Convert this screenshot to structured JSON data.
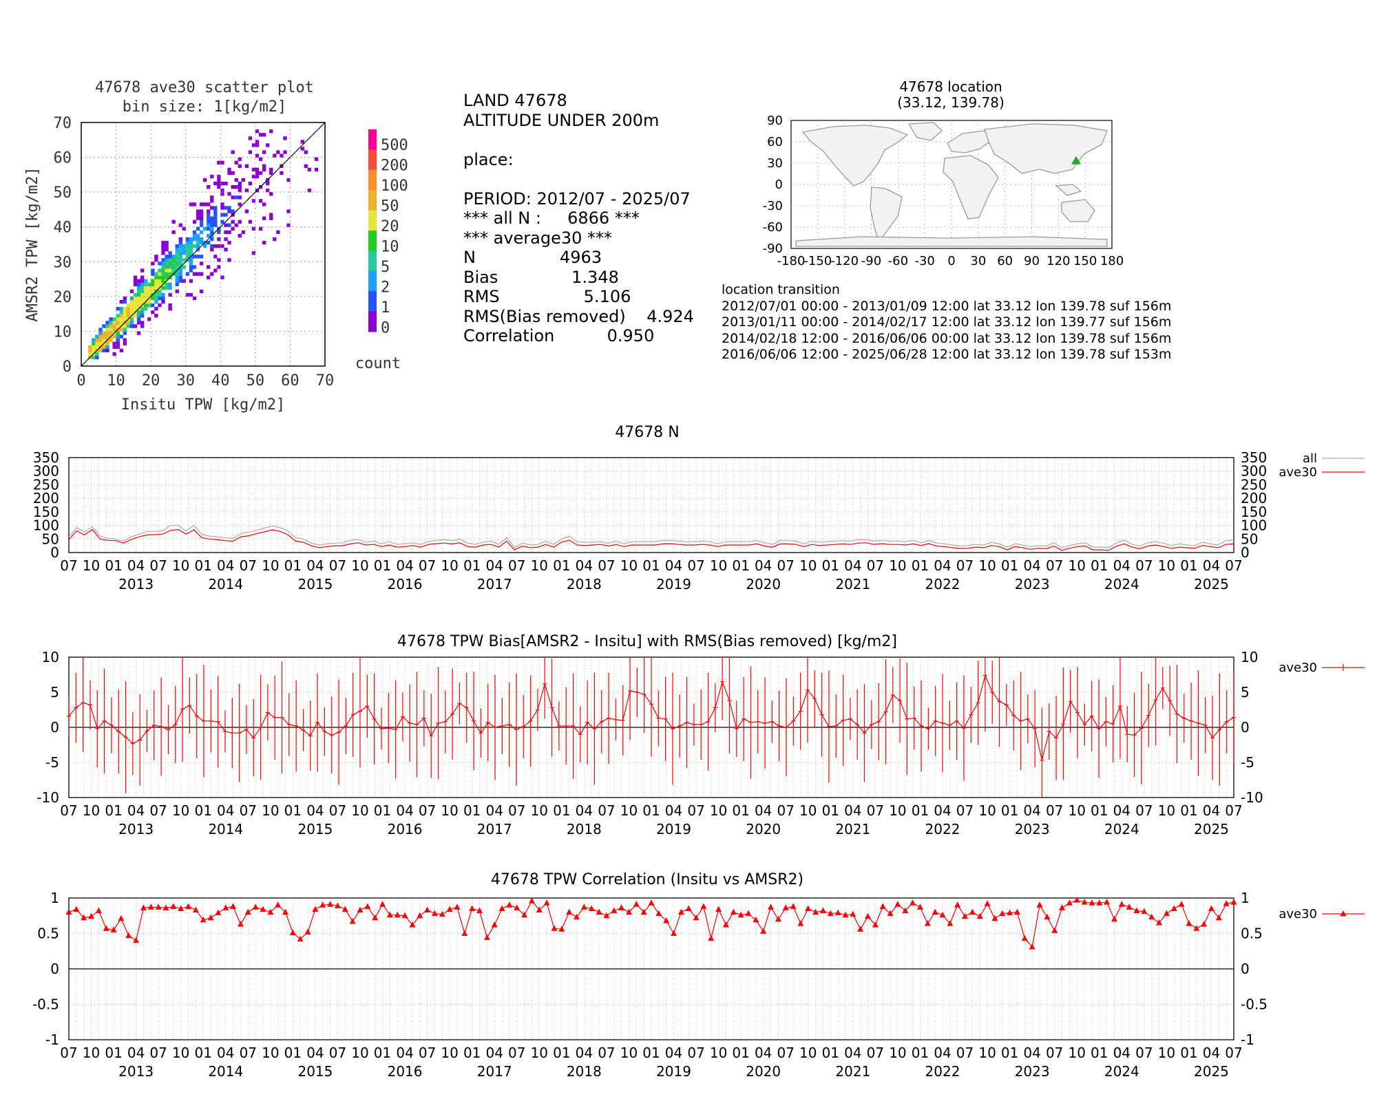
{
  "scatter": {
    "title_line1": "47678 ave30 scatter plot",
    "title_line2": "bin size: 1[kg/m2]",
    "xlabel": "Insitu TPW [kg/m2]",
    "ylabel": "AMSR2 TPW [kg/m2]",
    "ticks": [
      "0",
      "10",
      "20",
      "30",
      "40",
      "50",
      "60",
      "70"
    ],
    "colorbar_labels": [
      "500",
      "200",
      "100",
      "50",
      "20",
      "10",
      "5",
      "2",
      "1",
      "0"
    ],
    "colorbar_colors": [
      "#ff0090",
      "#ff4a3a",
      "#ff8c2a",
      "#f0b030",
      "#e6e63a",
      "#22cc22",
      "#22cc99",
      "#1f9fff",
      "#2255ff",
      "#8a00d4"
    ],
    "colorbar_title": "count"
  },
  "stats": {
    "line1": "LAND 47678",
    "line2": "ALTITUDE UNDER 200m",
    "line3": "",
    "line4": "place:",
    "line5": "",
    "line6": "PERIOD: 2012/07 - 2025/07",
    "line7": "*** all N :     6866 ***",
    "line8": "*** average30 ***",
    "line9": "N                4963",
    "line10": "Bias              1.348",
    "line11": "RMS                5.106",
    "line12": "RMS(Bias removed)    4.924",
    "line13": "Correlation          0.950"
  },
  "map": {
    "title_line1": "47678 location",
    "title_line2": "(33.12, 139.78)",
    "lat": 33.12,
    "lon": 139.78,
    "xticks": [
      "-180",
      "-150",
      "-120",
      "-90",
      "-60",
      "-30",
      "0",
      "30",
      "60",
      "90",
      "120",
      "150",
      "180"
    ],
    "yticks": [
      "90",
      "60",
      "30",
      "0",
      "-30",
      "-60",
      "-90"
    ],
    "marker_color": "#22aa22"
  },
  "transitions": {
    "title": "location transition",
    "rows": [
      "2012/07/01 00:00 - 2013/01/09 12:00 lat 33.12 lon 139.78 suf 156m",
      "2013/01/11 00:00 - 2014/02/17 12:00 lat 33.12 lon 139.77 suf 156m",
      "2014/02/18 12:00 - 2016/06/06 00:00 lat 33.12 lon 139.78 suf 156m",
      "2016/06/06 12:00 - 2025/06/28 12:00 lat 33.12 lon 139.78 suf 153m"
    ]
  },
  "timeaxis": {
    "month_labels": [
      "07",
      "10",
      "01",
      "04",
      "07",
      "10",
      "01",
      "04",
      "07",
      "10",
      "01",
      "04",
      "07",
      "10",
      "01",
      "04",
      "07",
      "10",
      "01",
      "04",
      "07",
      "10",
      "01",
      "04",
      "07",
      "10",
      "01",
      "04",
      "07",
      "10",
      "01",
      "04",
      "07",
      "10",
      "01",
      "04",
      "07",
      "10",
      "01",
      "04",
      "07",
      "10",
      "01",
      "04",
      "07",
      "10",
      "01",
      "04",
      "07",
      "10",
      "01",
      "04",
      "07"
    ],
    "years": [
      "2013",
      "2014",
      "2015",
      "2016",
      "2017",
      "2018",
      "2019",
      "2020",
      "2021",
      "2022",
      "2023",
      "2024",
      "2025"
    ]
  },
  "chart_data": [
    {
      "type": "scatter",
      "title": "47678 ave30 scatter plot",
      "subtitle": "bin size: 1[kg/m2]",
      "xlabel": "Insitu TPW [kg/m2]",
      "ylabel": "AMSR2 TPW [kg/m2]",
      "xlim": [
        0,
        70
      ],
      "ylim": [
        0,
        70
      ],
      "color_scale": "count",
      "note": "2-D histogram of (Insitu, AMSR2) pairs, dense along the 1:1 line"
    },
    {
      "type": "line",
      "title": "47678 N",
      "ylim": [
        0,
        350
      ],
      "yticks": [
        "350",
        "300",
        "250",
        "200",
        "150",
        "100",
        "50",
        "0"
      ],
      "series": [
        {
          "name": "all",
          "color": "#aaaaaa",
          "values": [
            58,
            92,
            75,
            95,
            60,
            52,
            50,
            42,
            58,
            68,
            78,
            78,
            80,
            100,
            100,
            80,
            100,
            68,
            60,
            58,
            55,
            52,
            70,
            75,
            82,
            90,
            98,
            92,
            80,
            55,
            50,
            35,
            28,
            32,
            35,
            35,
            45,
            48,
            38,
            42,
            32,
            40,
            30,
            32,
            36,
            30,
            40,
            45,
            48,
            44,
            50,
            35,
            30,
            38,
            42,
            30,
            55,
            18,
            35,
            28,
            30,
            42,
            30,
            50,
            60,
            40,
            38,
            38,
            40,
            34,
            42,
            32,
            40,
            40,
            40,
            40,
            45,
            45,
            42,
            40,
            40,
            42,
            40,
            32,
            40,
            40,
            40,
            40,
            44,
            36,
            30,
            45,
            44,
            42,
            32,
            42,
            38,
            40,
            42,
            44,
            42,
            48,
            48,
            42,
            45,
            42,
            42,
            40,
            45,
            36,
            45,
            35,
            32,
            28,
            24,
            26,
            30,
            28,
            38,
            32,
            20,
            32,
            28,
            22,
            26,
            24,
            36,
            18,
            26,
            32,
            36,
            20,
            20,
            18,
            36,
            46,
            30,
            24,
            36,
            40,
            34,
            26,
            32,
            28,
            26,
            38,
            32,
            28,
            44,
            46
          ]
        },
        {
          "name": "ave30",
          "color": "#ff0000",
          "values": [
            48,
            80,
            65,
            85,
            50,
            45,
            44,
            35,
            48,
            58,
            65,
            66,
            68,
            82,
            85,
            68,
            84,
            55,
            50,
            48,
            44,
            42,
            58,
            62,
            70,
            76,
            84,
            78,
            66,
            42,
            38,
            25,
            18,
            22,
            25,
            25,
            32,
            36,
            28,
            30,
            22,
            28,
            20,
            22,
            26,
            20,
            30,
            33,
            35,
            32,
            36,
            22,
            20,
            28,
            30,
            20,
            42,
            10,
            24,
            18,
            20,
            30,
            20,
            38,
            46,
            28,
            26,
            28,
            30,
            24,
            30,
            22,
            28,
            28,
            28,
            28,
            32,
            33,
            30,
            28,
            28,
            30,
            28,
            22,
            28,
            28,
            28,
            28,
            32,
            24,
            20,
            32,
            32,
            30,
            22,
            30,
            26,
            28,
            30,
            32,
            30,
            35,
            36,
            30,
            33,
            30,
            30,
            28,
            32,
            26,
            33,
            24,
            22,
            18,
            15,
            16,
            20,
            18,
            26,
            22,
            10,
            22,
            18,
            12,
            16,
            14,
            24,
            8,
            16,
            22,
            24,
            10,
            10,
            8,
            24,
            32,
            20,
            14,
            24,
            28,
            22,
            16,
            20,
            18,
            16,
            26,
            22,
            18,
            30,
            32
          ]
        }
      ],
      "legend": "outside-right"
    },
    {
      "type": "line",
      "title": "47678 TPW Bias[AMSR2 - Insitu] with RMS(Bias removed) [kg/m2]",
      "ylim": [
        -10,
        10
      ],
      "yticks": [
        "10",
        "5",
        "0",
        "-5",
        "-10"
      ],
      "series": [
        {
          "name": "ave30",
          "color": "#ff0000",
          "values": [
            1.6,
            2.8,
            3.5,
            3.2,
            -0.2,
            0.9,
            0.3,
            -0.6,
            -1.4,
            -2.3,
            -1.8,
            -0.5,
            0.3,
            0.1,
            -0.3,
            0.4,
            2.6,
            3.1,
            1.6,
            0.9,
            0.9,
            0.8,
            -0.6,
            -0.8,
            -0.8,
            -0.3,
            -1.5,
            0.0,
            2.1,
            1.4,
            1.4,
            0.4,
            0.2,
            -0.4,
            -1.2,
            0.7,
            -0.6,
            -1.1,
            -0.7,
            0.2,
            1.8,
            2.3,
            3.0,
            1.2,
            -0.2,
            -0.1,
            -0.3,
            1.5,
            0.6,
            0.4,
            1.3,
            -1.2,
            0.6,
            0.8,
            1.9,
            3.4,
            2.8,
            0.9,
            -0.8,
            0.7,
            0.0,
            0.2,
            0.4,
            -0.3,
            0.1,
            0.9,
            2.5,
            6.2,
            2.8,
            0.2,
            0.2,
            0.2,
            -1.0,
            0.7,
            -0.2,
            0.8,
            1.3,
            1.1,
            1.0,
            5.2,
            5.0,
            4.7,
            3.3,
            1.3,
            1.2,
            -0.2,
            0.2,
            0.7,
            0.4,
            0.4,
            0.8,
            2.8,
            6.5,
            3.8,
            -0.2,
            1.2,
            0.7,
            0.8,
            0.6,
            0.8,
            0.2,
            0.0,
            0.9,
            2.3,
            5.3,
            4.1,
            1.8,
            0.1,
            0.2,
            1.0,
            1.2,
            0.4,
            -0.8,
            0.4,
            0.8,
            2.2,
            4.6,
            3.8,
            1.2,
            1.3,
            0.2,
            -0.2,
            0.9,
            0.6,
            0.3,
            0.9,
            -0.1,
            1.8,
            3.5,
            7.4,
            5.0,
            3.7,
            3.2,
            1.7,
            0.9,
            1.2,
            -0.2,
            -4.7,
            -0.6,
            -1.5,
            0.5,
            3.7,
            2.1,
            0.4,
            1.6,
            -0.2,
            0.8,
            0.5,
            3.0,
            -1.0,
            -1.1,
            -0.1,
            1.7,
            3.9,
            5.6,
            3.8,
            1.9,
            1.3,
            0.9,
            0.6,
            0.3,
            -1.5,
            -0.3,
            0.8,
            1.4
          ]
        }
      ],
      "error_bars": "RMS(Bias removed) per month, roughly 3-8 kg/m2",
      "legend": "outside-right"
    },
    {
      "type": "line",
      "title": "47678 TPW Correlation (Insitu vs AMSR2)",
      "ylim": [
        -1,
        1
      ],
      "yticks": [
        "1",
        "0.5",
        "0",
        "-0.5",
        "-1"
      ],
      "series": [
        {
          "name": "ave30",
          "color": "#ff0000",
          "values": [
            0.8,
            0.84,
            0.72,
            0.74,
            0.82,
            0.57,
            0.55,
            0.71,
            0.47,
            0.4,
            0.86,
            0.87,
            0.87,
            0.86,
            0.88,
            0.85,
            0.88,
            0.83,
            0.69,
            0.72,
            0.79,
            0.86,
            0.88,
            0.63,
            0.8,
            0.87,
            0.84,
            0.8,
            0.9,
            0.8,
            0.51,
            0.42,
            0.52,
            0.84,
            0.9,
            0.91,
            0.89,
            0.84,
            0.67,
            0.83,
            0.88,
            0.72,
            0.91,
            0.76,
            0.76,
            0.75,
            0.62,
            0.75,
            0.83,
            0.78,
            0.77,
            0.84,
            0.87,
            0.5,
            0.85,
            0.82,
            0.44,
            0.62,
            0.85,
            0.9,
            0.86,
            0.76,
            0.96,
            0.83,
            0.93,
            0.57,
            0.56,
            0.8,
            0.73,
            0.87,
            0.85,
            0.8,
            0.75,
            0.82,
            0.86,
            0.8,
            0.91,
            0.8,
            0.93,
            0.78,
            0.68,
            0.5,
            0.8,
            0.85,
            0.72,
            0.88,
            0.43,
            0.84,
            0.62,
            0.8,
            0.76,
            0.78,
            0.69,
            0.53,
            0.87,
            0.7,
            0.86,
            0.88,
            0.64,
            0.85,
            0.8,
            0.82,
            0.78,
            0.79,
            0.76,
            0.77,
            0.56,
            0.74,
            0.62,
            0.88,
            0.78,
            0.91,
            0.82,
            0.93,
            0.87,
            0.64,
            0.8,
            0.76,
            0.64,
            0.9,
            0.74,
            0.8,
            0.74,
            0.92,
            0.71,
            0.78,
            0.79,
            0.8,
            0.43,
            0.31,
            0.9,
            0.73,
            0.54,
            0.86,
            0.93,
            0.97,
            0.94,
            0.93,
            0.93,
            0.94,
            0.7,
            0.91,
            0.87,
            0.82,
            0.81,
            0.73,
            0.65,
            0.78,
            0.85,
            0.91,
            0.64,
            0.57,
            0.63,
            0.85,
            0.72,
            0.92,
            0.94
          ]
        }
      ],
      "legend": "outside-right"
    }
  ]
}
